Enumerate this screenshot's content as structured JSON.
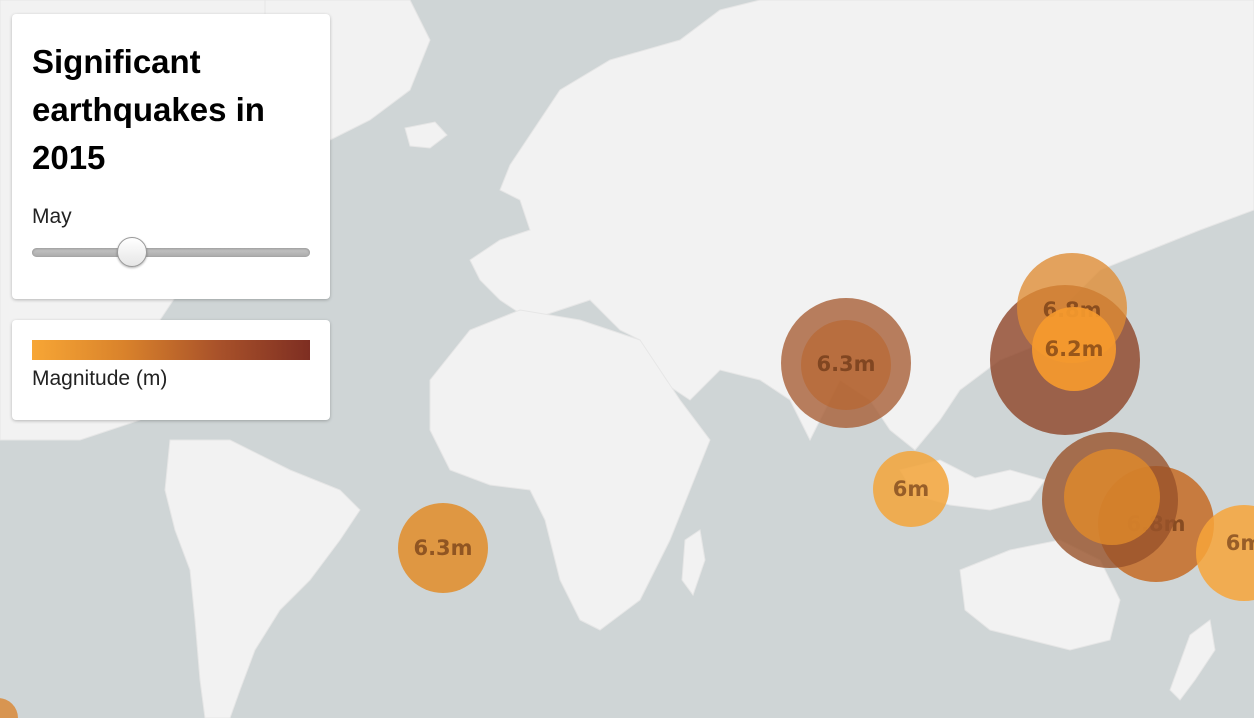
{
  "title": "Significant earthquakes in 2015",
  "slider": {
    "label": "May",
    "value_fraction": 0.36
  },
  "legend": {
    "label": "Magnitude (m)",
    "ramp_colors": [
      "#f7a635",
      "#d9822b",
      "#a9522a",
      "#7e2e22"
    ]
  },
  "map_colors": {
    "water": "#cfd5d6",
    "land": "#f2f2f2"
  },
  "earthquakes": [
    {
      "label": "6.3m",
      "magnitude": 6.3,
      "color": "#e09032"
    },
    {
      "label": "6.3m",
      "magnitude": 6.3,
      "color": "#a65c33"
    },
    {
      "label": "6m",
      "magnitude": 6.0,
      "color": "#f3a53a"
    },
    {
      "label": "6.8m",
      "magnitude": 6.8,
      "color": "#df8c33"
    },
    {
      "label": "6.2m",
      "magnitude": 6.2,
      "color": "#f59a2e"
    },
    {
      "label": "",
      "magnitude": 7.3,
      "color": "#8c4022"
    },
    {
      "label": "6.8m",
      "magnitude": 6.8,
      "color": "#c66b25"
    },
    {
      "label": "",
      "magnitude": 7.1,
      "color": "#98522b"
    },
    {
      "label": "",
      "magnitude": 6.5,
      "color": "#e08a2a"
    },
    {
      "label": "6m",
      "magnitude": 6.0,
      "color": "#f7a53a"
    },
    {
      "label": "",
      "magnitude": 6.3,
      "color": "#d98a3a"
    }
  ]
}
